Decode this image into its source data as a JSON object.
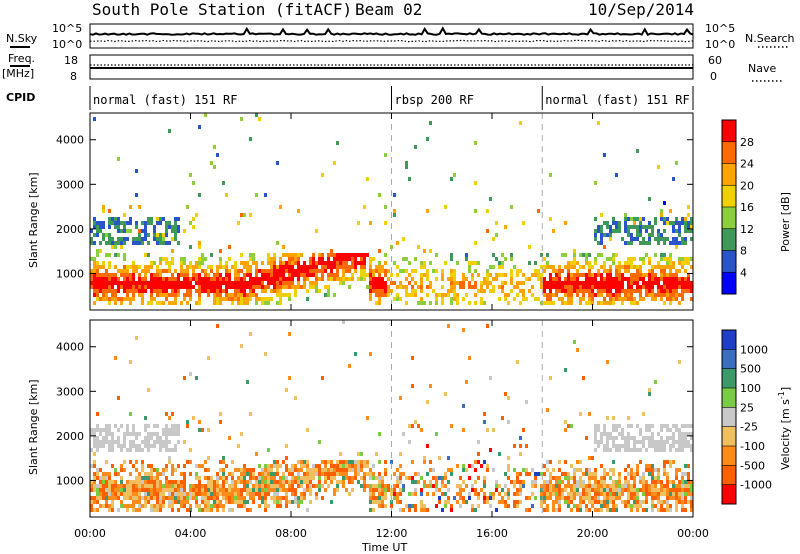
{
  "header": {
    "station": "South Pole Station (fitACF)",
    "beam": "Beam 02",
    "date": "10/Sep/2014"
  },
  "left_labels": {
    "nsky": "N.Sky",
    "freq": "Freq.",
    "freq_unit": "[MHz]",
    "cpid": "CPID"
  },
  "right_labels": {
    "nsearch": "N.Search",
    "nave": "Nave"
  },
  "noise_panel": {
    "left_ticks": [
      "10^5",
      "10^0"
    ],
    "right_ticks": [
      "10^5",
      "10^0"
    ]
  },
  "freq_panel": {
    "left_ticks": [
      "18",
      "8"
    ],
    "right_ticks": [
      "60",
      "0"
    ]
  },
  "cpid_segments": [
    {
      "label": "normal (fast) 151 RF",
      "start_hour": 0,
      "end_hour": 12
    },
    {
      "label": "rbsp 200 RF",
      "start_hour": 12,
      "end_hour": 18
    },
    {
      "label": "normal (fast) 151 RF",
      "start_hour": 18,
      "end_hour": 24
    }
  ],
  "x_axis": {
    "label": "Time UT",
    "ticks": [
      "00:00",
      "04:00",
      "08:00",
      "12:00",
      "16:00",
      "20:00",
      "00:00"
    ]
  },
  "chart_data": [
    {
      "type": "heatmap",
      "quantity": "Power",
      "ylabel": "Slant Range [km]",
      "yticks": [
        1000,
        2000,
        3000,
        4000
      ],
      "ylim": [
        180,
        4600
      ],
      "xlim": [
        0,
        24
      ],
      "colorbar_label": "Power [dB]",
      "colorbar_ticks": [
        "28",
        "24",
        "20",
        "16",
        "12",
        "8",
        "4"
      ],
      "colorbar_colors": [
        "#ff0000",
        "#ff6a00",
        "#ffa400",
        "#f0d000",
        "#8ccf3c",
        "#3f9a5a",
        "#2a55c8",
        "#0000ff"
      ]
    },
    {
      "type": "heatmap",
      "quantity": "Velocity",
      "ylabel": "Slant Range [km]",
      "yticks": [
        1000,
        2000,
        3000,
        4000
      ],
      "ylim": [
        180,
        4600
      ],
      "xlim": [
        0,
        24
      ],
      "colorbar_label": "Velocity [m s",
      "colorbar_unit_sup": "-1",
      "colorbar_unit_close": "]",
      "colorbar_ticks": [
        "1000",
        "500",
        "100",
        "25",
        "-25",
        "-100",
        "-500",
        "-1000"
      ],
      "colorbar_colors": [
        "#1e3ec8",
        "#3a6fc0",
        "#3c9a6a",
        "#7acc44",
        "#c8c8c8",
        "#f0c060",
        "#ff8c1a",
        "#ff6000",
        "#ff0000"
      ]
    }
  ]
}
